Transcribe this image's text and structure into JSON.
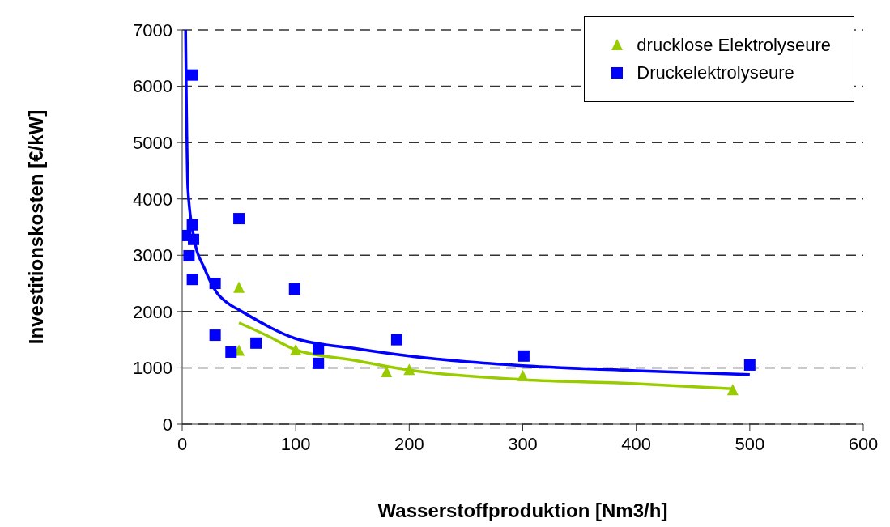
{
  "chart_data": {
    "type": "scatter",
    "xlabel": "Wasserstoffproduktion [Nm3/h]",
    "ylabel": "Investitionskosten [€/kW]",
    "xlim": [
      0,
      600
    ],
    "xticks": [
      0,
      100,
      200,
      300,
      400,
      500,
      600
    ],
    "ylim": [
      0,
      7000
    ],
    "yticks": [
      0,
      1000,
      2000,
      3000,
      4000,
      5000,
      6000,
      7000
    ],
    "grid": "y",
    "legend": "top right",
    "series": [
      {
        "name": "drucklose Elektrolyseure",
        "marker": "triangle",
        "color": "#99cc00",
        "x": [
          50,
          50,
          100,
          180,
          200,
          300,
          485
        ],
        "values": [
          2420,
          1300,
          1310,
          920,
          960,
          850,
          600
        ]
      },
      {
        "name": "Druckelektrolyseure",
        "marker": "square",
        "color": "#0000ff",
        "x": [
          9,
          3,
          9,
          10,
          6,
          9,
          29,
          50,
          29,
          43,
          65,
          99,
          120,
          120,
          189,
          301,
          500
        ],
        "values": [
          6200,
          3350,
          3540,
          3280,
          2990,
          2570,
          2500,
          3650,
          1580,
          1280,
          1440,
          2400,
          1340,
          1080,
          1500,
          1210,
          1050
        ]
      },
      {
        "type": "line",
        "marker": "none",
        "color": "#99cc00",
        "x": [
          50,
          75,
          100,
          150,
          200,
          300,
          400,
          485
        ],
        "values": [
          1800,
          1570,
          1320,
          1140,
          960,
          790,
          720,
          630
        ]
      },
      {
        "type": "line",
        "marker": "none",
        "color": "#0000ff",
        "x": [
          3,
          5,
          10,
          20,
          30,
          40,
          50,
          100,
          150,
          200,
          250,
          300,
          400,
          500
        ],
        "values": [
          7000,
          4200,
          3350,
          2750,
          2350,
          2150,
          2030,
          1520,
          1350,
          1210,
          1110,
          1040,
          950,
          880
        ]
      }
    ]
  }
}
